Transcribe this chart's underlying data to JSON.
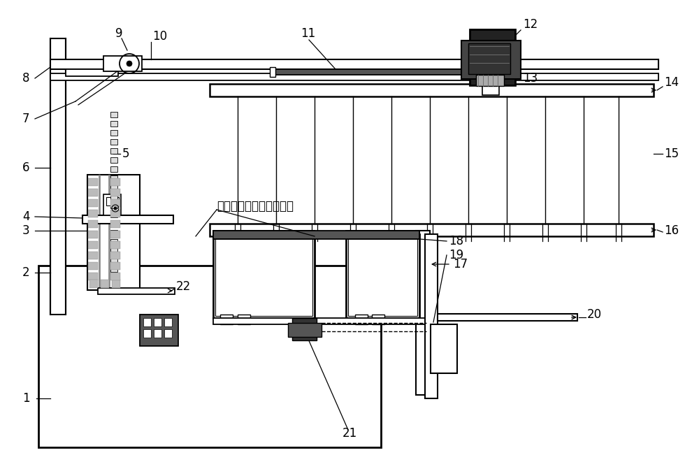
{
  "bg_color": "#ffffff",
  "line_color": "#000000",
  "fig_width": 10.0,
  "fig_height": 6.71,
  "nano_label": "纳米微分子羊绒羊毛面料"
}
